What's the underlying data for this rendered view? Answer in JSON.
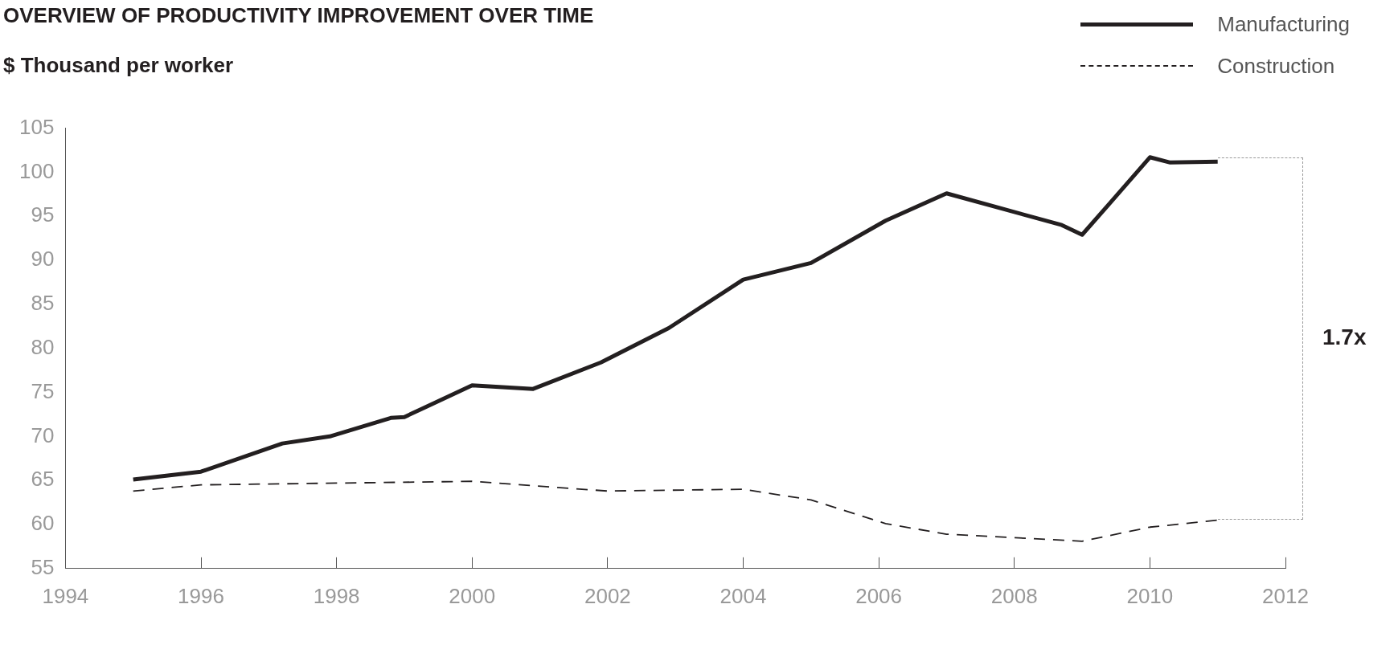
{
  "chart_data": {
    "type": "line",
    "title": "OVERVIEW OF PRODUCTIVITY IMPROVEMENT OVER TIME",
    "ylabel": "$ Thousand per worker",
    "series": [
      {
        "name": "Manufacturing",
        "color": "#231f20",
        "line_style": "solid",
        "x": [
          1995,
          1996,
          1997.2,
          1997.9,
          1998.8,
          1999,
          2000,
          2000.9,
          2001.9,
          2002.9,
          2004,
          2005,
          2006.1,
          2007,
          2008.7,
          2009,
          2009.4,
          2010,
          2010.3,
          2011
        ],
        "values": [
          65.1,
          66,
          69.2,
          70,
          72.1,
          72.2,
          75.8,
          75.4,
          78.4,
          82.3,
          87.8,
          89.7,
          94.5,
          97.6,
          94,
          92.9,
          96.4,
          101.7,
          101.1,
          101.2
        ]
      },
      {
        "name": "Construction",
        "color": "#231f20",
        "line_style": "dashed",
        "x": [
          1995,
          1996,
          1998,
          2000,
          2002,
          2004,
          2005,
          2006.1,
          2007,
          2009,
          2010,
          2011
        ],
        "values": [
          63.8,
          64.5,
          64.7,
          64.9,
          63.8,
          64,
          62.8,
          60.1,
          58.9,
          58.1,
          59.7,
          60.5
        ]
      }
    ],
    "xlim": [
      1994,
      2012
    ],
    "xticks": [
      1994,
      1996,
      1998,
      2000,
      2002,
      2004,
      2006,
      2008,
      2010,
      2012
    ],
    "ylim": [
      55,
      105
    ],
    "yticks": [
      55,
      60,
      65,
      70,
      75,
      80,
      85,
      90,
      95,
      100,
      105
    ],
    "legend": "top right",
    "grid": false,
    "marker": "none",
    "annotations": [
      "1.7x"
    ]
  }
}
